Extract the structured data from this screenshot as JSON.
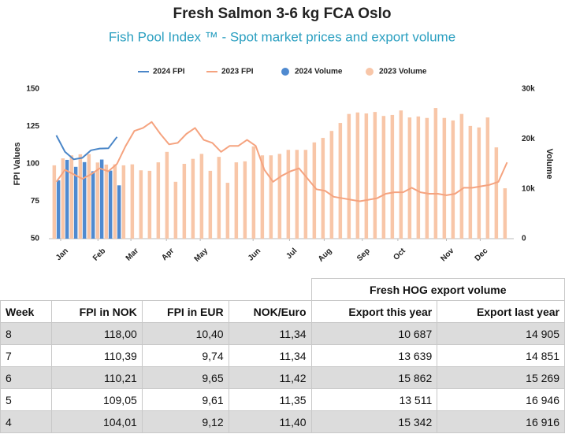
{
  "chart_data": {
    "type": "combo",
    "title": "Fresh Salmon 3-6 kg FCA Oslo",
    "subtitle": "Fish Pool Index ™ - Spot market prices and export volume",
    "ylabel": "FPI Values",
    "y2label": "Volume",
    "x": [
      1,
      2,
      3,
      4,
      5,
      6,
      7,
      8,
      9,
      10,
      11,
      12,
      13,
      14,
      15,
      16,
      17,
      18,
      19,
      20,
      21,
      22,
      23,
      24,
      25,
      26,
      27,
      28,
      29,
      30,
      31,
      32,
      33,
      34,
      35,
      36,
      37,
      38,
      39,
      40,
      41,
      42,
      43,
      44,
      45,
      46,
      47,
      48,
      49,
      50,
      51,
      52,
      53
    ],
    "xlim": [
      0.5,
      53.5
    ],
    "xticks": [
      {
        "value": 1.5,
        "label": "Jan"
      },
      {
        "value": 5.8,
        "label": "Feb"
      },
      {
        "value": 9.6,
        "label": "Mar"
      },
      {
        "value": 13.7,
        "label": "Apr"
      },
      {
        "value": 17.6,
        "label": "May"
      },
      {
        "value": 23.7,
        "label": "Jun"
      },
      {
        "value": 27.9,
        "label": "Jul"
      },
      {
        "value": 31.9,
        "label": "Aug"
      },
      {
        "value": 36.3,
        "label": "Sep"
      },
      {
        "value": 40.4,
        "label": "Oct"
      },
      {
        "value": 46,
        "label": "Nov"
      },
      {
        "value": 49.9,
        "label": "Dec"
      }
    ],
    "ylim": [
      50,
      150
    ],
    "yticks": [
      50,
      75,
      100,
      125,
      150
    ],
    "y2lim": [
      0,
      30000
    ],
    "y2ticks": [
      0,
      {
        "value": 10000,
        "label": "10k"
      },
      {
        "value": 20000,
        "label": "20k"
      },
      {
        "value": 30000,
        "label": "30k"
      }
    ],
    "grid": false,
    "legend": "top",
    "series": [
      {
        "name": "2023 Volume",
        "type": "bar",
        "axis": "y2",
        "color": "#f8c6a8",
        "values": [
          14700,
          16100,
          16700,
          16916,
          16946,
          15269,
          14851,
          14905,
          14700,
          14900,
          13700,
          13600,
          15300,
          17400,
          11400,
          15000,
          16000,
          17000,
          13600,
          16400,
          11200,
          15300,
          15500,
          18500,
          16700,
          16700,
          17000,
          17800,
          17800,
          17800,
          19300,
          20200,
          21600,
          23200,
          25000,
          25300,
          25100,
          25400,
          24600,
          24800,
          25700,
          24300,
          24500,
          24200,
          26200,
          24200,
          23700,
          25000,
          22600,
          22300,
          24300,
          18300,
          10100
        ]
      },
      {
        "name": "2024 Volume",
        "type": "bar",
        "axis": "y2",
        "color": "#4f8ad0",
        "values": [
          11700,
          15800,
          14400,
          15342,
          13511,
          15862,
          13639,
          10687,
          null,
          null,
          null,
          null,
          null,
          null,
          null,
          null,
          null,
          null,
          null,
          null,
          null,
          null,
          null,
          null,
          null,
          null,
          null,
          null,
          null,
          null,
          null,
          null,
          null,
          null,
          null,
          null,
          null,
          null,
          null,
          null,
          null,
          null,
          null,
          null,
          null,
          null,
          null,
          null,
          null,
          null,
          null,
          null,
          null
        ]
      },
      {
        "name": "2023 FPI",
        "type": "line",
        "color": "#f5a37f",
        "values": [
          88,
          96,
          93,
          90,
          93,
          97,
          95,
          100,
          112,
          122,
          124,
          128,
          120,
          113,
          114,
          120,
          124,
          116,
          114,
          108,
          112,
          112,
          116,
          112,
          96,
          88,
          92,
          95,
          97,
          90,
          83,
          82,
          78,
          77,
          76,
          75,
          76,
          77,
          80,
          81,
          81,
          84,
          81,
          80,
          80,
          79,
          80,
          84,
          84,
          85,
          86,
          88,
          101
        ]
      },
      {
        "name": "2024 FPI",
        "type": "line",
        "color": "#4a86c8",
        "values": [
          119,
          108,
          103,
          104.01,
          109.05,
          110.21,
          110.39,
          118.0,
          null,
          null,
          null,
          null,
          null,
          null,
          null,
          null,
          null,
          null,
          null,
          null,
          null,
          null,
          null,
          null,
          null,
          null,
          null,
          null,
          null,
          null,
          null,
          null,
          null,
          null,
          null,
          null,
          null,
          null,
          null,
          null,
          null,
          null,
          null,
          null,
          null,
          null,
          null,
          null,
          null,
          null,
          null,
          null,
          null
        ]
      }
    ],
    "legend_order": [
      3,
      2,
      1,
      0
    ]
  },
  "table": {
    "group_header": "Fresh HOG export volume",
    "columns": [
      "Week",
      "FPI in NOK",
      "FPI in EUR",
      "NOK/Euro",
      "Export this year",
      "Export last year"
    ],
    "rows": [
      [
        "8",
        "118,00",
        "10,40",
        "11,34",
        "10 687",
        "14 905"
      ],
      [
        "7",
        "110,39",
        "9,74",
        "11,34",
        "13 639",
        "14 851"
      ],
      [
        "6",
        "110,21",
        "9,65",
        "11,42",
        "15 862",
        "15 269"
      ],
      [
        "5",
        "109,05",
        "9,61",
        "11,35",
        "13 511",
        "16 946"
      ],
      [
        "4",
        "104,01",
        "9,12",
        "11,40",
        "15 342",
        "16 916"
      ]
    ]
  }
}
